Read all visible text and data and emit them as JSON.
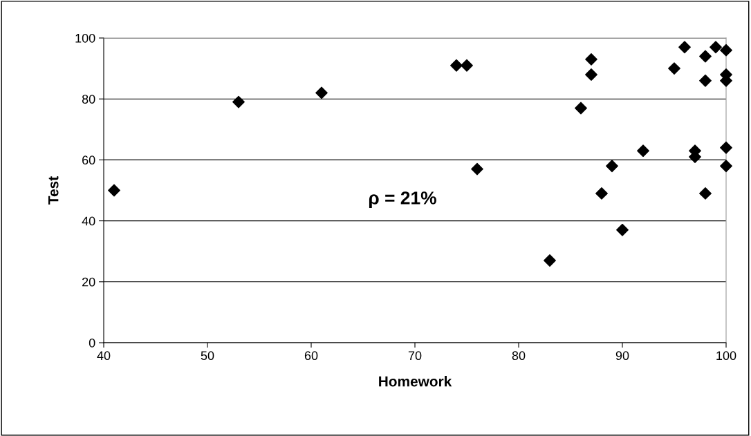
{
  "chart_data": {
    "type": "scatter",
    "xlabel": "Homework",
    "ylabel": "Test",
    "annotations": [
      "ρ = 21%"
    ],
    "x": [
      41,
      53,
      61,
      74,
      75,
      76,
      83,
      86,
      87,
      87,
      88,
      89,
      90,
      92,
      95,
      96,
      97,
      97,
      98,
      98,
      98,
      99,
      100,
      100,
      100,
      100,
      100
    ],
    "series": [
      {
        "color": "#000000",
        "values": [
          50,
          79,
          82,
          91,
          91,
          57,
          27,
          77,
          93,
          88,
          49,
          58,
          37,
          63,
          90,
          97,
          63,
          61,
          94,
          86,
          49,
          97,
          96,
          88,
          86,
          64,
          58
        ]
      }
    ],
    "xlim": [
      40,
      100
    ],
    "xticks": [
      40,
      50,
      60,
      70,
      80,
      90,
      100
    ],
    "ylim": [
      0,
      100
    ],
    "yticks": [
      0,
      20,
      40,
      60,
      80,
      100
    ],
    "grid": "y",
    "marker": "diamond"
  }
}
